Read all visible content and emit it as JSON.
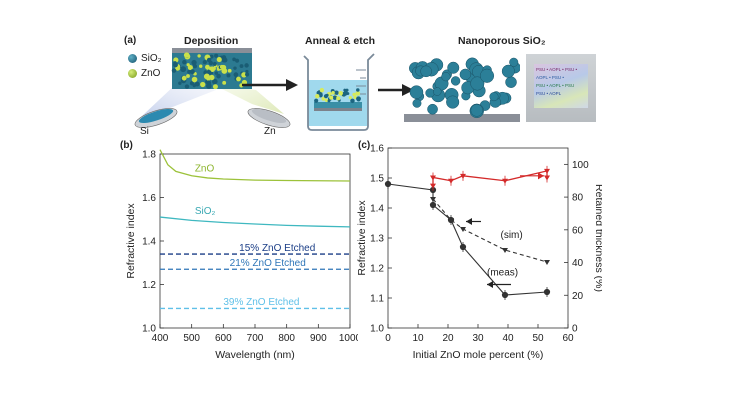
{
  "panel_a": {
    "label": "(a)",
    "deposition_title": "Deposition",
    "anneal_title": "Anneal & etch",
    "nano_title": "Nanoporous SiO₂",
    "legend": [
      {
        "name": "SiO₂",
        "color": "#1e6f86"
      },
      {
        "name": "ZnO",
        "color": "#9bbf2a"
      }
    ],
    "target_si": "Si",
    "target_zn": "Zn",
    "photo_text_lines": [
      "PSU • AOPL • PSU •",
      "AOPL • PSU •",
      "PSU • AOPL • PSU",
      "PSU • AOPL"
    ]
  },
  "chart_data": [
    {
      "panel": "(b)",
      "type": "line",
      "xlabel": "Wavelength (nm)",
      "ylabel": "Refractive index",
      "xlim": [
        400,
        1000
      ],
      "ylim": [
        1.0,
        1.8
      ],
      "xticks": [
        400,
        500,
        600,
        700,
        800,
        900,
        1000
      ],
      "yticks": [
        "1.0",
        "1.2",
        "1.4",
        "1.6",
        "1.8"
      ],
      "series": [
        {
          "name": "ZnO",
          "style": "solid",
          "color": "#9cc23a",
          "x": [
            400,
            425,
            450,
            500,
            550,
            600,
            700,
            800,
            900,
            1000
          ],
          "y": [
            1.82,
            1.75,
            1.72,
            1.7,
            1.69,
            1.685,
            1.68,
            1.678,
            1.677,
            1.676
          ]
        },
        {
          "name": "SiO₂",
          "style": "solid",
          "color": "#3fb8c0",
          "x": [
            400,
            500,
            600,
            700,
            800,
            900,
            1000
          ],
          "y": [
            1.51,
            1.495,
            1.485,
            1.478,
            1.472,
            1.468,
            1.465
          ]
        },
        {
          "name": "15% ZnO Etched",
          "style": "dashed",
          "color": "#1a3d86",
          "x": [
            400,
            1000
          ],
          "y": [
            1.34,
            1.34
          ]
        },
        {
          "name": "21% ZnO Etched",
          "style": "dashed",
          "color": "#2f76b8",
          "x": [
            400,
            1000
          ],
          "y": [
            1.27,
            1.27
          ]
        },
        {
          "name": "39% ZnO Etched",
          "style": "dashed",
          "color": "#5fc0e8",
          "x": [
            400,
            1000
          ],
          "y": [
            1.09,
            1.09
          ]
        }
      ]
    },
    {
      "panel": "(c)",
      "type": "line",
      "xlabel": "Initial ZnO mole percent (%)",
      "ylabel": "Refractive index",
      "y2label": "Retained thickness (%)",
      "xlim": [
        0,
        60
      ],
      "ylim": [
        1.0,
        1.6
      ],
      "y2lim": [
        0,
        110
      ],
      "xticks": [
        0,
        10,
        20,
        30,
        40,
        50,
        60
      ],
      "yticks": [
        "1.0",
        "1.1",
        "1.2",
        "1.3",
        "1.4",
        "1.5",
        "1.6"
      ],
      "y2ticks": [
        0,
        20,
        40,
        60,
        80,
        100
      ],
      "annotations": [
        "(sim)",
        "(meas)"
      ],
      "series": [
        {
          "name": "(meas)",
          "axis": "left",
          "style": "solid",
          "color": "#333333",
          "x": [
            0,
            15,
            15,
            21,
            25,
            39,
            53
          ],
          "y": [
            1.48,
            1.46,
            1.41,
            1.36,
            1.27,
            1.11,
            1.12
          ]
        },
        {
          "name": "(sim)",
          "axis": "left",
          "style": "dashed",
          "color": "#333333",
          "x": [
            15,
            21,
            25,
            39,
            53
          ],
          "y": [
            1.43,
            1.36,
            1.33,
            1.26,
            1.22
          ]
        },
        {
          "name": "Retained thickness",
          "axis": "right",
          "style": "solid",
          "color": "#d42a2a",
          "x": [
            15,
            15,
            21,
            25,
            39,
            53,
            53
          ],
          "y": [
            87,
            92,
            90,
            93,
            90,
            96,
            92
          ]
        }
      ]
    }
  ]
}
